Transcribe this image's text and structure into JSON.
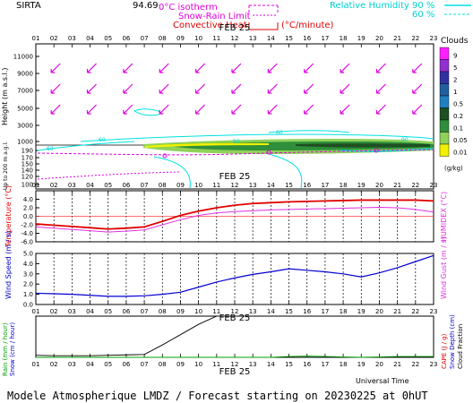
{
  "header": {
    "station": "SIRTA",
    "coords": "94.69",
    "legend_left": {
      "line1": "0°C isotherm",
      "line2": "Snow-Rain Limit",
      "line3": "Convective Heat",
      "line3_unit": "(°C/minute)"
    },
    "legend_right": {
      "label": "Relative Humidity",
      "v1": "90 %",
      "v2": "60 %"
    }
  },
  "hours": [
    "01",
    "02",
    "03",
    "04",
    "05",
    "06",
    "07",
    "08",
    "09",
    "10",
    "11",
    "12",
    "13",
    "14",
    "15",
    "16",
    "17",
    "18",
    "19",
    "20",
    "21",
    "22",
    "23"
  ],
  "date_label": "FEB 25",
  "panel1": {
    "ylabel": "Height  (m a.s.l.)",
    "ylabel2": "Up to 200 m a.g.l.",
    "yticks_upper": [
      "11000",
      "9000",
      "7000",
      "5000",
      "3000",
      "1000"
    ],
    "yticks_lower": [
      "190",
      "170",
      "150",
      "140",
      "120",
      "100"
    ],
    "cloud_title": "Clouds",
    "cloud_levels": [
      "9",
      "5",
      "2",
      "1",
      "0.5",
      "0.2",
      "0.1",
      "0.05",
      "0.01"
    ],
    "cloud_unit": "(g/kg)",
    "contour_labels": [
      "60",
      "60",
      "90",
      "90",
      "60"
    ]
  },
  "panel2": {
    "ylabel": "Temperature (°C)",
    "ylabel_right": "HUMIDEX (°C)",
    "yticks": [
      "4.0",
      "2.0",
      "0.0",
      "-2.0",
      "-4.0",
      "-6.0"
    ]
  },
  "panel3": {
    "ylabel": "Wind Speed (m / s)",
    "ylabel_right": "Wind Gust (m / s)",
    "yticks": [
      "5.0",
      "4.0",
      "3.0",
      "2.0",
      "1.0",
      "0.0"
    ]
  },
  "panel4": {
    "ylabel_left1": "Rain (mm / hour)",
    "ylabel_left2": "Snow (cm / hour)",
    "ylabel_right1": "CAPE (J / g)",
    "ylabel_right2": "Snow Depth (cm)",
    "ylabel_right3": "Cloud Fraction",
    "xlabel": "Universal Time"
  },
  "footer": "Modele Atmospherique LMDZ / Forecast starting on 20230225 at 0hUT",
  "colors": {
    "temperature": "#e00000",
    "humidex": "#e030e0",
    "wind": "#0000d0",
    "rh": "#00e0e0",
    "iso": "#e000e0",
    "cloud_fraction": "#000000"
  },
  "chart_data": [
    {
      "type": "line",
      "title": "Temperature / HUMIDEX",
      "x": [
        "01",
        "02",
        "03",
        "04",
        "05",
        "06",
        "07",
        "08",
        "09",
        "10",
        "11",
        "12",
        "13",
        "14",
        "15",
        "16",
        "17",
        "18",
        "19",
        "20",
        "21",
        "22",
        "23"
      ],
      "ylim": [
        -6.0,
        6.0
      ],
      "series": [
        {
          "name": "Temperature",
          "values": [
            -1.8,
            -2.1,
            -2.4,
            -2.7,
            -3.0,
            -2.8,
            -2.5,
            -1.2,
            0.2,
            1.2,
            2.0,
            2.6,
            3.0,
            3.2,
            3.4,
            3.5,
            3.6,
            3.7,
            3.8,
            3.8,
            3.8,
            3.8,
            3.6
          ]
        },
        {
          "name": "HUMIDEX",
          "values": [
            -2.5,
            -2.8,
            -3.1,
            -3.4,
            -3.7,
            -3.5,
            -3.2,
            -2.0,
            -0.8,
            0.2,
            0.8,
            1.1,
            1.3,
            1.5,
            1.6,
            1.7,
            1.8,
            1.9,
            2.0,
            2.1,
            2.0,
            1.6,
            1.0
          ]
        }
      ]
    },
    {
      "type": "line",
      "title": "Wind Speed",
      "x": [
        "01",
        "02",
        "03",
        "04",
        "05",
        "06",
        "07",
        "08",
        "09",
        "10",
        "11",
        "12",
        "13",
        "14",
        "15",
        "16",
        "17",
        "18",
        "19",
        "20",
        "21",
        "22",
        "23"
      ],
      "ylim": [
        0.0,
        5.0
      ],
      "series": [
        {
          "name": "Wind Speed",
          "values": [
            1.1,
            1.05,
            1.0,
            0.9,
            0.8,
            0.8,
            0.85,
            1.0,
            1.2,
            1.7,
            2.2,
            2.6,
            2.95,
            3.2,
            3.5,
            3.35,
            3.2,
            3.0,
            2.7,
            3.1,
            3.6,
            4.2,
            4.8
          ]
        }
      ]
    },
    {
      "type": "line",
      "title": "Cloud Fraction",
      "x": [
        "01",
        "02",
        "03",
        "04",
        "05",
        "06",
        "07",
        "08",
        "09",
        "10",
        "11",
        "12",
        "13",
        "14",
        "15",
        "16",
        "17",
        "18",
        "19",
        "20",
        "21",
        "22",
        "23"
      ],
      "ylim": [
        0.0,
        1.0
      ],
      "series": [
        {
          "name": "Cloud Fraction",
          "values": [
            0.05,
            0.04,
            0.04,
            0.04,
            0.05,
            0.06,
            0.07,
            0.3,
            0.55,
            0.8,
            1.0,
            1.0,
            1.0,
            1.0,
            1.0,
            1.0,
            1.0,
            1.0,
            1.0,
            1.0,
            1.0,
            1.0,
            1.0
          ]
        },
        {
          "name": "Rain",
          "values": [
            0,
            0,
            0,
            0,
            0,
            0,
            0,
            0,
            0,
            0,
            0,
            0,
            0,
            0,
            0.02,
            0.03,
            0.02,
            0.01,
            0,
            0.01,
            0.02,
            0.02,
            0.02
          ]
        }
      ]
    }
  ]
}
